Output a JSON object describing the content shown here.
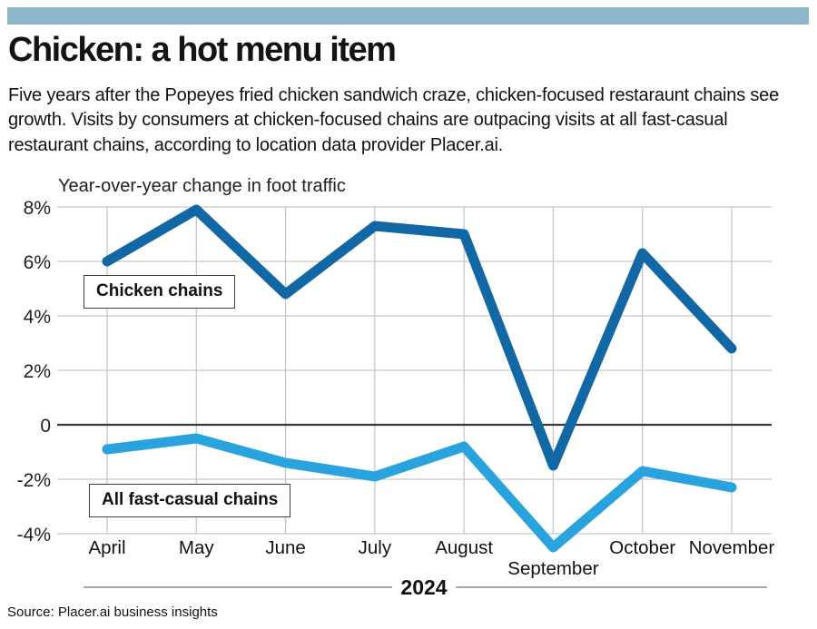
{
  "header": {
    "bar_color": "#8DB6CB"
  },
  "title": "Chicken: a hot menu item",
  "description": "Five years after the Popeyes fried chicken sandwich craze, chicken-focused restaraunt chains see growth. Visits by consumers at chicken-focused chains are outpacing visits at all fast-casual restaurant chains, according to location data provider Placer.ai.",
  "source": "Source: Placer.ai business insights",
  "chart_data": {
    "type": "line",
    "title": "Year-over-year change in foot traffic",
    "categories": [
      "April",
      "May",
      "June",
      "July",
      "August",
      "September",
      "October",
      "November"
    ],
    "x_axis_year": "2024",
    "series": [
      {
        "name": "Chicken chains",
        "color": "#1168A5",
        "values": [
          6.0,
          7.9,
          4.8,
          7.3,
          7.0,
          -1.5,
          6.3,
          2.8
        ]
      },
      {
        "name": "All fast-casual chains",
        "color": "#29A3DD",
        "values": [
          -0.9,
          -0.5,
          -1.4,
          -1.9,
          -0.8,
          -4.5,
          -1.7,
          -2.3
        ]
      }
    ],
    "y_ticks": [
      {
        "value": 8,
        "label": "8%"
      },
      {
        "value": 6,
        "label": "6%"
      },
      {
        "value": 4,
        "label": "4%"
      },
      {
        "value": 2,
        "label": "2%"
      },
      {
        "value": 0,
        "label": "0"
      },
      {
        "value": -2,
        "label": "-2%"
      },
      {
        "value": -4,
        "label": "-4%"
      }
    ],
    "ylim": [
      -4.7,
      8
    ],
    "grid": true,
    "legend_position": "boxed-labels-on-plot",
    "colors": {
      "gridline": "#c7c7c7",
      "zero_line": "#3a3a3a",
      "year_rule": "#8a8a8a",
      "tick_text": "#1f1f1f"
    }
  }
}
